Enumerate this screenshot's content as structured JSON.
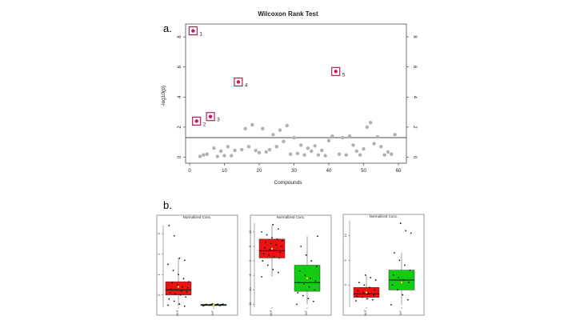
{
  "figure": {
    "panel_a_label": "a.",
    "panel_b_label": "b."
  },
  "colors": {
    "highlight": "#cc1166",
    "box_border": "#b0123a",
    "point_gray": "#b0b0b0",
    "mut_fill": "#ee1111",
    "wt_fill": "#11cc11",
    "mean_marker": "#ffff00"
  },
  "chart_data": [
    {
      "type": "scatter",
      "title": "Wilcoxon Rank Test",
      "xlabel": "Compounds",
      "ylabel": "-log10(p)",
      "xlim": [
        0,
        62
      ],
      "ylim": [
        0,
        8.5
      ],
      "xticks": [
        0,
        10,
        20,
        30,
        40,
        50,
        60
      ],
      "yticks": [
        0,
        2,
        4,
        6,
        8
      ],
      "threshold": 1.3,
      "grid": false,
      "highlighted": [
        {
          "label": "1",
          "x": 1,
          "y": 8.4
        },
        {
          "label": "2",
          "x": 2,
          "y": 2.4
        },
        {
          "label": "3",
          "x": 6,
          "y": 2.7
        },
        {
          "label": "4",
          "x": 14,
          "y": 5.0
        },
        {
          "label": "5",
          "x": 42,
          "y": 5.7
        }
      ],
      "x": [
        3,
        4,
        5,
        7,
        8,
        9,
        10,
        11,
        12,
        13,
        15,
        16,
        17,
        18,
        19,
        20,
        21,
        22,
        23,
        24,
        25,
        26,
        27,
        28,
        29,
        30,
        31,
        32,
        33,
        34,
        35,
        36,
        37,
        38,
        39,
        40,
        41,
        43,
        44,
        45,
        46,
        47,
        48,
        49,
        50,
        51,
        52,
        53,
        54,
        55,
        56,
        57,
        58,
        59
      ],
      "y": [
        0.05,
        0.15,
        0.2,
        0.6,
        0.05,
        0.4,
        0.1,
        0.7,
        0.1,
        0.45,
        0.5,
        1.9,
        0.7,
        2.15,
        0.45,
        0.3,
        1.9,
        0.35,
        0.5,
        1.5,
        0.7,
        1.8,
        1.05,
        2.1,
        0.2,
        1.3,
        0.25,
        0.8,
        0.15,
        0.6,
        0.4,
        0.75,
        0.15,
        0.45,
        0.1,
        1.1,
        1.4,
        0.2,
        1.3,
        0.15,
        1.4,
        0.8,
        0.4,
        0.15,
        0.55,
        2.0,
        2.3,
        0.9,
        1.35,
        0.7,
        0.15,
        0.35,
        0.2,
        1.5
      ]
    },
    {
      "type": "box",
      "title": "Normalized Conc.",
      "categories": [
        "MUT",
        "WT"
      ],
      "ylim": [
        -0.6,
        3.4
      ],
      "yticks": [
        0,
        1,
        2,
        3
      ],
      "boxes": [
        {
          "q1": 0.0,
          "median": 0.25,
          "q3": 0.65,
          "whisker_low": -0.55,
          "whisker_high": 1.8,
          "mean": 0.4
        },
        {
          "q1": -0.52,
          "median": -0.49,
          "q3": -0.46,
          "whisker_low": -0.55,
          "whisker_high": -0.44,
          "mean": -0.49
        }
      ],
      "points": [
        [
          -0.5,
          -0.55,
          -0.45,
          -0.3,
          -0.2,
          -0.1,
          0.0,
          0.05,
          0.1,
          0.15,
          0.2,
          0.25,
          0.3,
          0.35,
          0.4,
          0.5,
          0.6,
          0.65,
          0.8,
          1.0,
          1.2,
          1.5,
          1.7,
          1.8,
          2.9,
          3.4
        ],
        [
          -0.53,
          -0.52,
          -0.51,
          -0.5,
          -0.5,
          -0.49,
          -0.49,
          -0.48,
          -0.48,
          -0.47,
          -0.47,
          -0.46,
          -0.46,
          -0.45,
          -0.45,
          -0.44
        ]
      ]
    },
    {
      "type": "box",
      "title": "Normalized Conc.",
      "categories": [
        "MUT",
        "WT"
      ],
      "ylim": [
        -16,
        13
      ],
      "yticks": [
        -15,
        -10,
        -5,
        0,
        5,
        10
      ],
      "boxes": [
        {
          "q1": 1.0,
          "median": 3.5,
          "q3": 7.5,
          "whisker_low": -5.5,
          "whisker_high": 12.5,
          "mean": 4.2
        },
        {
          "q1": -10.5,
          "median": -7.5,
          "q3": -1.5,
          "whisker_low": -15,
          "whisker_high": 8.5,
          "mean": -6.0
        }
      ],
      "points": [
        [
          -5.5,
          -4.0,
          -3.0,
          -1.5,
          0.0,
          1.0,
          1.5,
          2.0,
          2.5,
          3.0,
          3.5,
          4.0,
          4.5,
          5.0,
          5.5,
          6.0,
          6.5,
          7.0,
          7.5,
          8.0,
          9.0,
          10.0,
          11.0,
          12.5
        ],
        [
          -15.0,
          -14.0,
          -13.0,
          -12.0,
          -11.0,
          -10.0,
          -9.0,
          -8.0,
          -7.5,
          -7.0,
          -6.0,
          -5.0,
          -3.5,
          -2.0,
          0.0,
          2.0,
          5.0,
          8.5
        ]
      ]
    },
    {
      "type": "box",
      "title": "Normalized Conc.",
      "categories": [
        "MUT",
        "WT"
      ],
      "ylim": [
        -4.5,
        13
      ],
      "yticks": [
        0,
        5,
        10
      ],
      "boxes": [
        {
          "q1": -2.5,
          "median": -1.8,
          "q3": -0.5,
          "whisker_low": -3.0,
          "whisker_high": 2.0,
          "mean": -1.5
        },
        {
          "q1": -1.0,
          "median": 1.0,
          "q3": 3.0,
          "whisker_low": -4.0,
          "whisker_high": 6.5,
          "mean": 0.5
        }
      ],
      "points": [
        [
          -3.2,
          -3.0,
          -2.8,
          -2.5,
          -2.3,
          -2.0,
          -1.8,
          -1.5,
          -1.2,
          -1.0,
          -0.5,
          0.0,
          0.5,
          1.0,
          1.5,
          2.0
        ],
        [
          -4.0,
          -3.0,
          -2.0,
          -1.0,
          0.0,
          0.5,
          1.0,
          1.5,
          2.0,
          3.0,
          4.0,
          5.0,
          6.5,
          10.5,
          11.0,
          12.5
        ]
      ]
    }
  ]
}
